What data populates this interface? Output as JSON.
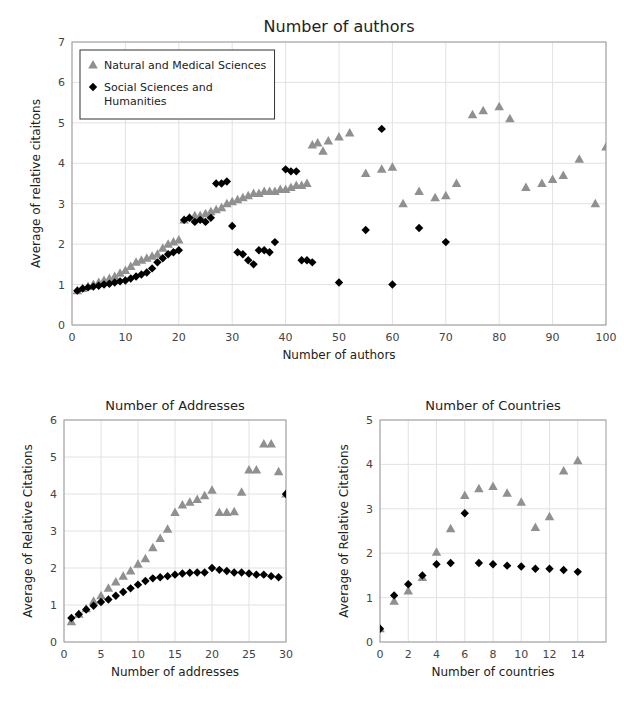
{
  "chart_data": [
    {
      "type": "scatter",
      "title": "Number of authors",
      "xlabel": "Number of authors",
      "ylabel": "Average of relative citaitons",
      "xlim": [
        0,
        100
      ],
      "ylim": [
        0,
        7
      ],
      "xticks": [
        0,
        10,
        20,
        30,
        40,
        50,
        60,
        70,
        80,
        90,
        100
      ],
      "yticks": [
        0,
        1,
        2,
        3,
        4,
        5,
        6,
        7
      ],
      "grid": true,
      "legend": "upper-left",
      "series": [
        {
          "name": "Natural and Medical Sciences",
          "color": "#909090",
          "marker": "triangle",
          "x": [
            1,
            2,
            3,
            4,
            5,
            6,
            7,
            8,
            9,
            10,
            11,
            12,
            13,
            14,
            15,
            16,
            17,
            18,
            19,
            20,
            21,
            22,
            23,
            24,
            25,
            26,
            27,
            28,
            29,
            30,
            31,
            32,
            33,
            34,
            35,
            36,
            37,
            38,
            39,
            40,
            41,
            42,
            43,
            44,
            45,
            46,
            47,
            48,
            50,
            52,
            55,
            58,
            60,
            62,
            65,
            68,
            70,
            72,
            75,
            77,
            80,
            82,
            85,
            88,
            90,
            92,
            95,
            98,
            100
          ],
          "values": [
            0.85,
            0.9,
            0.95,
            1.0,
            1.05,
            1.1,
            1.15,
            1.2,
            1.28,
            1.35,
            1.45,
            1.55,
            1.6,
            1.65,
            1.7,
            1.75,
            1.9,
            2.0,
            2.05,
            2.1,
            2.6,
            2.65,
            2.7,
            2.7,
            2.75,
            2.8,
            2.85,
            2.9,
            3.0,
            3.05,
            3.1,
            3.15,
            3.2,
            3.25,
            3.25,
            3.3,
            3.3,
            3.3,
            3.35,
            3.35,
            3.4,
            3.45,
            3.45,
            3.5,
            4.45,
            4.5,
            4.3,
            4.55,
            4.65,
            4.75,
            3.75,
            3.85,
            3.9,
            3.0,
            3.3,
            3.15,
            3.2,
            3.5,
            5.2,
            5.3,
            5.4,
            5.1,
            3.4,
            3.5,
            3.6,
            3.7,
            4.1,
            3.0,
            4.4
          ]
        },
        {
          "name": "Social Sciences and\nHumanities",
          "color": "#000000",
          "marker": "diamond",
          "x": [
            1,
            2,
            3,
            4,
            5,
            6,
            7,
            8,
            9,
            10,
            11,
            12,
            13,
            14,
            15,
            16,
            17,
            18,
            19,
            20,
            21,
            22,
            23,
            24,
            25,
            26,
            27,
            28,
            29,
            30,
            31,
            32,
            33,
            34,
            35,
            36,
            37,
            38,
            40,
            41,
            42,
            43,
            44,
            45,
            50,
            55,
            58,
            60,
            65,
            70
          ],
          "values": [
            0.85,
            0.9,
            0.93,
            0.95,
            0.97,
            1.0,
            1.02,
            1.05,
            1.08,
            1.1,
            1.15,
            1.2,
            1.25,
            1.3,
            1.4,
            1.55,
            1.65,
            1.75,
            1.8,
            1.85,
            2.6,
            2.65,
            2.55,
            2.6,
            2.55,
            2.65,
            3.5,
            3.5,
            3.55,
            2.45,
            1.8,
            1.75,
            1.6,
            1.5,
            1.85,
            1.85,
            1.8,
            2.05,
            3.85,
            3.8,
            3.8,
            1.6,
            1.6,
            1.55,
            1.05,
            2.35,
            4.85,
            1.0,
            2.4,
            2.05
          ]
        }
      ]
    },
    {
      "type": "scatter",
      "title": "Number of Addresses",
      "xlabel": "Number of addresses",
      "ylabel": "Average of Relative Citations",
      "xlim": [
        0,
        30
      ],
      "ylim": [
        0,
        6
      ],
      "xticks": [
        0,
        5,
        10,
        15,
        20,
        25,
        30
      ],
      "yticks": [
        0,
        1,
        2,
        3,
        4,
        5,
        6
      ],
      "grid": true,
      "series": [
        {
          "color": "#909090",
          "marker": "triangle",
          "x": [
            1,
            2,
            3,
            4,
            5,
            6,
            7,
            8,
            9,
            10,
            11,
            12,
            13,
            14,
            15,
            16,
            17,
            18,
            19,
            20,
            21,
            22,
            23,
            24,
            25,
            26,
            27,
            28,
            29,
            30
          ],
          "values": [
            0.55,
            0.75,
            0.9,
            1.1,
            1.25,
            1.45,
            1.62,
            1.78,
            1.92,
            2.1,
            2.25,
            2.55,
            2.8,
            3.05,
            3.5,
            3.7,
            3.78,
            3.85,
            3.95,
            4.1,
            3.5,
            3.5,
            3.52,
            4.05,
            4.65,
            4.65,
            5.35,
            5.35,
            4.6,
            4.0
          ]
        },
        {
          "color": "#000000",
          "marker": "diamond",
          "x": [
            1,
            2,
            3,
            4,
            5,
            6,
            7,
            8,
            9,
            10,
            11,
            12,
            13,
            14,
            15,
            16,
            17,
            18,
            19,
            20,
            21,
            22,
            23,
            24,
            25,
            26,
            27,
            28,
            29,
            30
          ],
          "values": [
            0.65,
            0.75,
            0.88,
            0.98,
            1.08,
            1.15,
            1.25,
            1.35,
            1.45,
            1.55,
            1.65,
            1.72,
            1.75,
            1.78,
            1.82,
            1.85,
            1.87,
            1.88,
            1.88,
            2.0,
            1.95,
            1.92,
            1.88,
            1.88,
            1.85,
            1.82,
            1.82,
            1.78,
            1.75,
            4.0
          ]
        }
      ]
    },
    {
      "type": "scatter",
      "title": "Number of Countries",
      "xlabel": "Number of countries",
      "ylabel": "Average of Relative Citations",
      "xlim": [
        0,
        16
      ],
      "ylim": [
        0,
        5
      ],
      "xticks": [
        0,
        2,
        4,
        6,
        8,
        10,
        12,
        14
      ],
      "yticks": [
        0,
        1,
        2,
        3,
        4,
        5
      ],
      "grid": true,
      "series": [
        {
          "color": "#909090",
          "marker": "triangle",
          "x": [
            0,
            1,
            2,
            3,
            4,
            5,
            6,
            7,
            8,
            9,
            10,
            11,
            12,
            13,
            14
          ],
          "values": [
            0.3,
            0.92,
            1.15,
            1.45,
            2.02,
            2.55,
            3.3,
            3.45,
            3.5,
            3.35,
            3.15,
            2.58,
            2.82,
            3.85,
            4.08
          ]
        },
        {
          "color": "#000000",
          "marker": "diamond",
          "x": [
            0,
            1,
            2,
            3,
            4,
            5,
            6,
            7,
            8,
            9,
            10,
            11,
            12,
            13,
            14
          ],
          "values": [
            0.3,
            1.05,
            1.3,
            1.5,
            1.75,
            1.78,
            2.9,
            1.78,
            1.75,
            1.72,
            1.7,
            1.65,
            1.65,
            1.62,
            1.58
          ]
        }
      ]
    }
  ]
}
